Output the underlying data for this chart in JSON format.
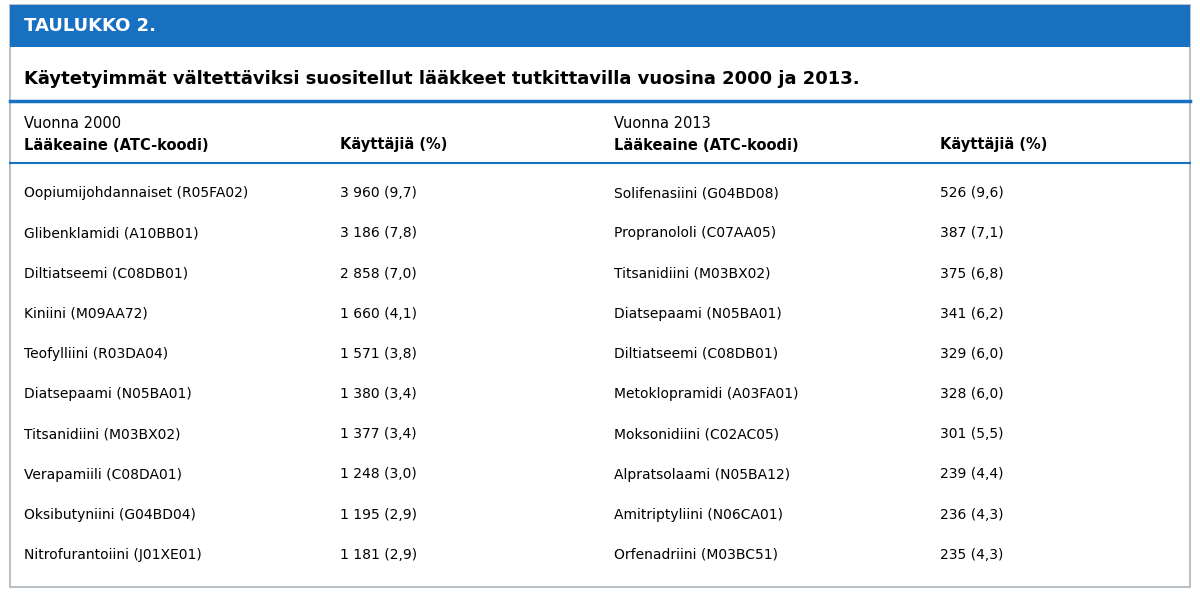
{
  "header_bg_color": "#1870c0",
  "header_text_color": "#ffffff",
  "header_text": "TAULUKKO 2.",
  "title": "Käytetyimmät vältettäviksi suositellut lääkkeet tutkittavilla vuosina 2000 ja 2013.",
  "col_headers_year": [
    "Vuonna 2000",
    "Vuonna 2013"
  ],
  "col_headers_sub": [
    "Lääkeaine (ATC-koodi)",
    "Käyttäjiä (%)",
    "Lääkeaine (ATC-koodi)",
    "Käyttäjiä (%)"
  ],
  "rows_2000_drug": [
    "Oopiumijohdannaiset (R05FA02)",
    "Glibenklamidi (A10BB01)",
    "Diltiatseemi (C08DB01)",
    "Kiniini (M09AA72)",
    "Teofylliini (R03DA04)",
    "Diatsepaami (N05BA01)",
    "Titsanidiini (M03BX02)",
    "Verapamiili (C08DA01)",
    "Oksibutyniini (G04BD04)",
    "Nitrofurantoiini (J01XE01)"
  ],
  "rows_2000_val": [
    "3 960 (9,7)",
    "3 186 (7,8)",
    "2 858 (7,0)",
    "1 660 (4,1)",
    "1 571 (3,8)",
    "1 380 (3,4)",
    "1 377 (3,4)",
    "1 248 (3,0)",
    "1 195 (2,9)",
    "1 181 (2,9)"
  ],
  "rows_2013_drug": [
    "Solifenasiini (G04BD08)",
    "Propranololi (C07AA05)",
    "Titsanidiini (M03BX02)",
    "Diatsepaami (N05BA01)",
    "Diltiatseemi (C08DB01)",
    "Metoklopramidi (A03FA01)",
    "Moksonidiini (C02AC05)",
    "Alpratsolaami (N05BA12)",
    "Amitriptyliini (N06CA01)",
    "Orfenadriini (M03BC51)"
  ],
  "rows_2013_val": [
    "526 (9,6)",
    "387 (7,1)",
    "375 (6,8)",
    "341 (6,2)",
    "329 (6,0)",
    "328 (6,0)",
    "301 (5,5)",
    "239 (4,4)",
    "236 (4,3)",
    "235 (4,3)"
  ],
  "outer_border_color": "#adb5bd",
  "line_color": "#1870c0",
  "body_bg_color": "#ffffff",
  "fig_bg_color": "#ffffff",
  "text_color": "#000000",
  "figsize": [
    12.0,
    5.92
  ],
  "dpi": 100
}
